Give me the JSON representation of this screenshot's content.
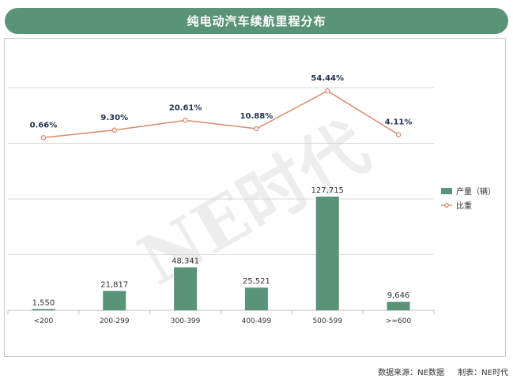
{
  "title": "纯电动汽车续航里程分布",
  "watermark": "NE时代",
  "footer": {
    "source": "数据来源：NE数据",
    "maker": "制表：NE时代"
  },
  "colors": {
    "bar": "#5a9478",
    "line": "#d98a6a",
    "title_bg": "#5a9478"
  },
  "chart_data": {
    "type": "bar+line",
    "categories": [
      "<200",
      "200-299",
      "300-399",
      "400-499",
      "500-599",
      ">=600"
    ],
    "series": [
      {
        "name": "产量（辆）",
        "type": "bar",
        "values": [
          1550,
          21817,
          48341,
          25521,
          127715,
          9646
        ],
        "labels": [
          "1,550",
          "21,817",
          "48,341",
          "25,521",
          "127,715",
          "9,646"
        ]
      },
      {
        "name": "比重",
        "type": "line",
        "values": [
          0.66,
          9.3,
          20.61,
          10.88,
          54.44,
          4.11
        ],
        "labels": [
          "0.66%",
          "9.30%",
          "20.61%",
          "10.88%",
          "54.44%",
          "4.11%"
        ]
      }
    ],
    "ylim_bar": [
      0,
      250000
    ],
    "grid": true,
    "legend_position": "right"
  }
}
